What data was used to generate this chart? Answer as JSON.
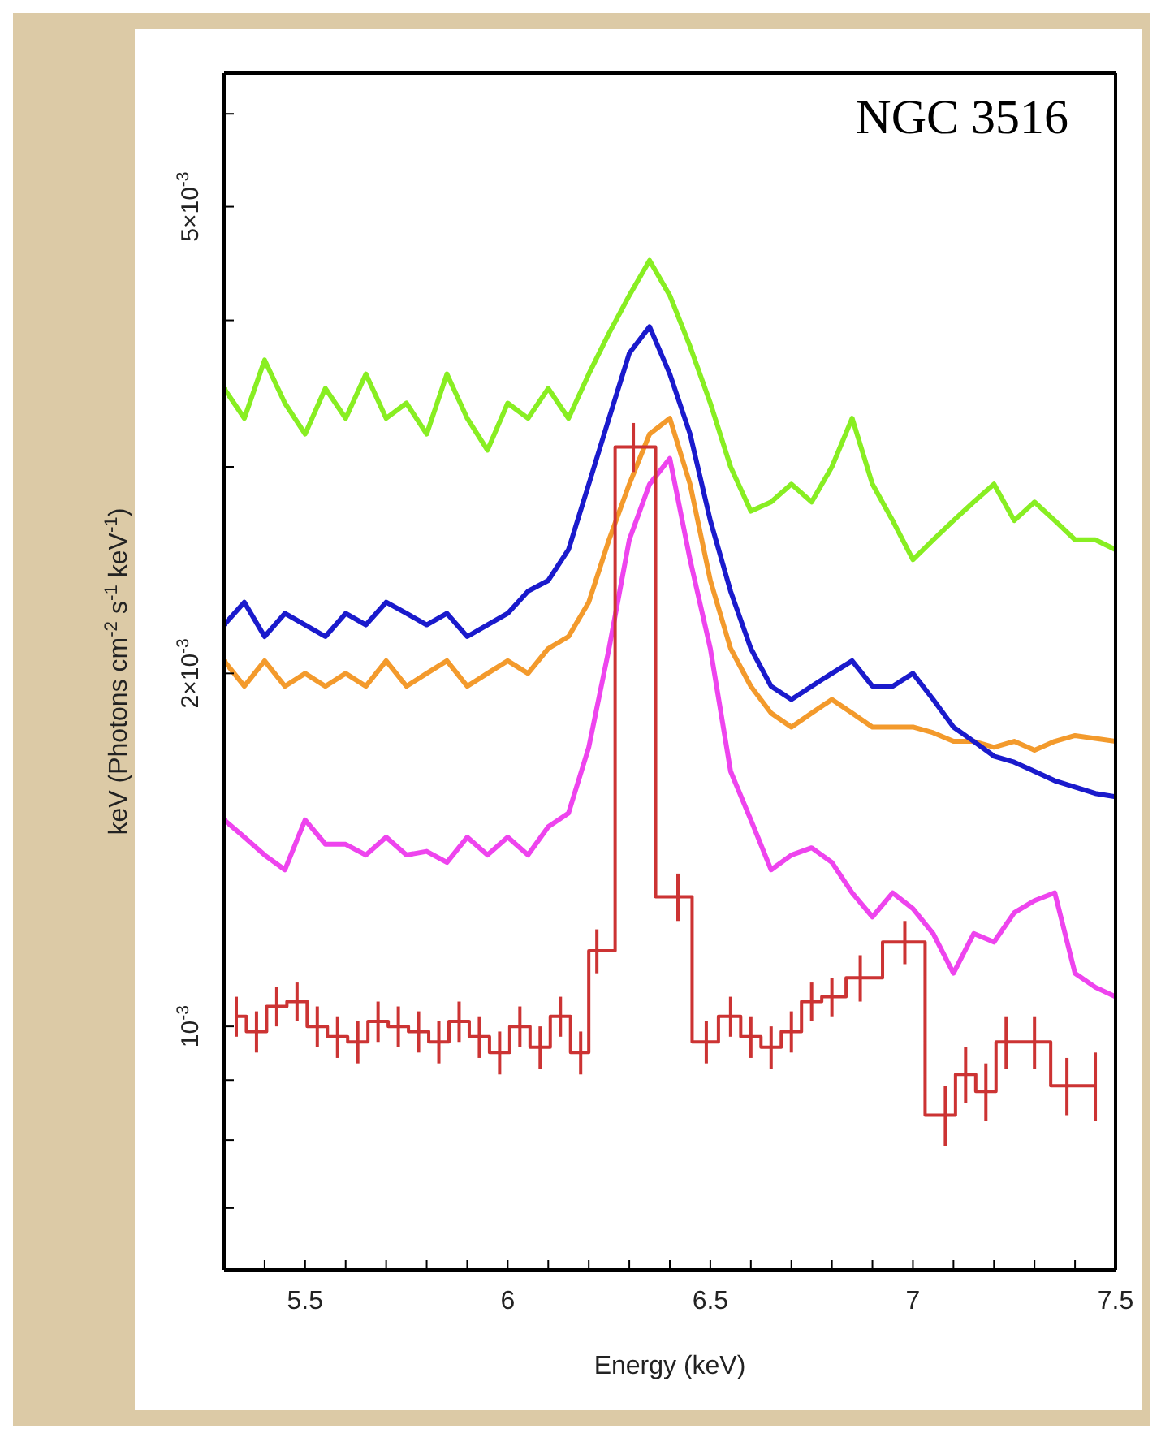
{
  "chart_data": {
    "type": "line",
    "xlabel": "Energy (keV)",
    "ylabel": "keV (Photons cm$^{-2}$ s$^{-1}$ keV$^{-1}$)",
    "annotations": [
      "NGC 3516"
    ],
    "log": "y",
    "xlim": [
      5.3,
      7.5
    ],
    "xticks": [
      {
        "value": 5.4,
        "label": null
      },
      5.5,
      {
        "value": 5.6,
        "label": null
      },
      {
        "value": 5.7,
        "label": null
      },
      {
        "value": 5.8,
        "label": null
      },
      {
        "value": 5.9,
        "label": null
      },
      6,
      {
        "value": 6.1,
        "label": null
      },
      {
        "value": 6.2,
        "label": null
      },
      {
        "value": 6.3,
        "label": null
      },
      {
        "value": 6.4,
        "label": null
      },
      6.5,
      {
        "value": 6.6,
        "label": null
      },
      {
        "value": 6.7,
        "label": null
      },
      {
        "value": 6.8,
        "label": null
      },
      {
        "value": 6.9,
        "label": null
      },
      7,
      {
        "value": 7.1,
        "label": null
      },
      {
        "value": 7.2,
        "label": null
      },
      {
        "value": 7.3,
        "label": null
      },
      {
        "value": 7.4,
        "label": null
      },
      7.5
    ],
    "ylim": [
      0.00062,
      0.0065
    ],
    "yticks": [
      {
        "value": 0.0007,
        "label": null
      },
      {
        "value": 0.0008,
        "label": null
      },
      {
        "value": 0.0009,
        "label": null
      },
      {
        "value": 0.001,
        "label": "10$^{-3}$"
      },
      {
        "value": 0.002,
        "label": "2×10$^{-3}$"
      },
      {
        "value": 0.003,
        "label": null
      },
      {
        "value": 0.004,
        "label": null
      },
      {
        "value": 0.005,
        "label": "5×10$^{-3}$"
      },
      {
        "value": 0.006,
        "label": null
      }
    ],
    "series": [
      {
        "color": "#88ee22",
        "x": [
          5.3,
          5.35,
          5.4,
          5.45,
          5.5,
          5.55,
          5.6,
          5.65,
          5.7,
          5.75,
          5.8,
          5.85,
          5.9,
          5.95,
          6.0,
          6.05,
          6.1,
          6.15,
          6.2,
          6.25,
          6.3,
          6.35,
          6.4,
          6.45,
          6.5,
          6.55,
          6.6,
          6.65,
          6.7,
          6.75,
          6.8,
          6.85,
          6.9,
          6.95,
          7.0,
          7.05,
          7.1,
          7.15,
          7.2,
          7.25,
          7.3,
          7.35,
          7.4,
          7.45,
          7.5
        ],
        "values": [
          0.0035,
          0.0033,
          0.0037,
          0.0034,
          0.0032,
          0.0035,
          0.0033,
          0.0036,
          0.0033,
          0.0034,
          0.0032,
          0.0036,
          0.0033,
          0.0031,
          0.0034,
          0.0033,
          0.0035,
          0.0033,
          0.0036,
          0.0039,
          0.0042,
          0.0045,
          0.0042,
          0.0038,
          0.0034,
          0.003,
          0.00275,
          0.0028,
          0.0029,
          0.0028,
          0.003,
          0.0033,
          0.0029,
          0.0027,
          0.0025,
          0.0026,
          0.0027,
          0.0028,
          0.0029,
          0.0027,
          0.0028,
          0.0027,
          0.0026,
          0.0026,
          0.00255
        ]
      },
      {
        "color": "#f39a2c",
        "x": [
          5.3,
          5.35,
          5.4,
          5.45,
          5.5,
          5.55,
          5.6,
          5.65,
          5.7,
          5.75,
          5.8,
          5.85,
          5.9,
          5.95,
          6.0,
          6.05,
          6.1,
          6.15,
          6.2,
          6.25,
          6.3,
          6.35,
          6.4,
          6.45,
          6.5,
          6.55,
          6.6,
          6.65,
          6.7,
          6.75,
          6.8,
          6.85,
          6.9,
          6.95,
          7.0,
          7.05,
          7.1,
          7.15,
          7.2,
          7.25,
          7.3,
          7.35,
          7.4,
          7.45,
          7.5
        ],
        "values": [
          0.00205,
          0.00195,
          0.00205,
          0.00195,
          0.002,
          0.00195,
          0.002,
          0.00195,
          0.00205,
          0.00195,
          0.002,
          0.00205,
          0.00195,
          0.002,
          0.00205,
          0.002,
          0.0021,
          0.00215,
          0.0023,
          0.0026,
          0.0029,
          0.0032,
          0.0033,
          0.0029,
          0.0024,
          0.0021,
          0.00195,
          0.00185,
          0.0018,
          0.00185,
          0.0019,
          0.00185,
          0.0018,
          0.0018,
          0.0018,
          0.00178,
          0.00175,
          0.00175,
          0.00173,
          0.00175,
          0.00172,
          0.00175,
          0.00177,
          0.00176,
          0.00175
        ]
      },
      {
        "color": "#1a1acc",
        "x": [
          5.3,
          5.35,
          5.4,
          5.45,
          5.5,
          5.55,
          5.6,
          5.65,
          5.7,
          5.75,
          5.8,
          5.85,
          5.9,
          5.95,
          6.0,
          6.05,
          6.1,
          6.15,
          6.2,
          6.25,
          6.3,
          6.35,
          6.4,
          6.45,
          6.5,
          6.55,
          6.6,
          6.65,
          6.7,
          6.75,
          6.8,
          6.85,
          6.9,
          6.95,
          7.0,
          7.05,
          7.1,
          7.15,
          7.2,
          7.25,
          7.3,
          7.35,
          7.4,
          7.45,
          7.5
        ],
        "values": [
          0.0022,
          0.0023,
          0.00215,
          0.00225,
          0.0022,
          0.00215,
          0.00225,
          0.0022,
          0.0023,
          0.00225,
          0.0022,
          0.00225,
          0.00215,
          0.0022,
          0.00225,
          0.00235,
          0.0024,
          0.00255,
          0.0029,
          0.0033,
          0.00375,
          0.00395,
          0.0036,
          0.0032,
          0.0027,
          0.00235,
          0.0021,
          0.00195,
          0.0019,
          0.00195,
          0.002,
          0.00205,
          0.00195,
          0.00195,
          0.002,
          0.0019,
          0.0018,
          0.00175,
          0.0017,
          0.00168,
          0.00165,
          0.00162,
          0.0016,
          0.00158,
          0.00157
        ]
      },
      {
        "color": "#ee44ee",
        "x": [
          5.3,
          5.35,
          5.4,
          5.45,
          5.5,
          5.55,
          5.6,
          5.65,
          5.7,
          5.75,
          5.8,
          5.85,
          5.9,
          5.95,
          6.0,
          6.05,
          6.1,
          6.15,
          6.2,
          6.25,
          6.3,
          6.35,
          6.4,
          6.45,
          6.5,
          6.55,
          6.6,
          6.65,
          6.7,
          6.75,
          6.8,
          6.85,
          6.9,
          6.95,
          7.0,
          7.05,
          7.1,
          7.15,
          7.2,
          7.25,
          7.3,
          7.35,
          7.4,
          7.45,
          7.5
        ],
        "values": [
          0.0015,
          0.00145,
          0.0014,
          0.00136,
          0.0015,
          0.00143,
          0.00143,
          0.0014,
          0.00145,
          0.0014,
          0.00141,
          0.00138,
          0.00145,
          0.0014,
          0.00145,
          0.0014,
          0.00148,
          0.00152,
          0.00173,
          0.0021,
          0.0026,
          0.0029,
          0.00305,
          0.0025,
          0.0021,
          0.00165,
          0.0015,
          0.00136,
          0.0014,
          0.00142,
          0.00138,
          0.0013,
          0.00124,
          0.0013,
          0.00126,
          0.0012,
          0.00111,
          0.0012,
          0.00118,
          0.00125,
          0.00128,
          0.0013,
          0.00111,
          0.00108,
          0.00106
        ]
      },
      {
        "color": "#cc3333",
        "type": "step",
        "x": [
          5.33,
          5.38,
          5.43,
          5.48,
          5.53,
          5.58,
          5.63,
          5.68,
          5.73,
          5.78,
          5.83,
          5.88,
          5.93,
          5.98,
          6.03,
          6.08,
          6.13,
          6.18,
          6.22,
          6.31,
          6.42,
          6.49,
          6.55,
          6.6,
          6.65,
          6.7,
          6.75,
          6.8,
          6.87,
          6.98,
          7.08,
          7.13,
          7.18,
          7.23,
          7.3,
          7.38,
          7.45
        ],
        "values": [
          0.00102,
          0.00099,
          0.00104,
          0.00105,
          0.001,
          0.00098,
          0.00097,
          0.00101,
          0.001,
          0.00099,
          0.00097,
          0.00101,
          0.00098,
          0.00095,
          0.001,
          0.00096,
          0.00102,
          0.00095,
          0.00116,
          0.00312,
          0.00129,
          0.00097,
          0.00102,
          0.00098,
          0.00096,
          0.00099,
          0.00105,
          0.00106,
          0.0011,
          0.00118,
          0.00084,
          0.00091,
          0.00088,
          0.00097,
          0.00097,
          0.00089,
          0.00089
        ],
        "errors": [
          4e-05,
          4e-05,
          4e-05,
          4e-05,
          4e-05,
          4e-05,
          4e-05,
          4e-05,
          4e-05,
          4e-05,
          4e-05,
          4e-05,
          4e-05,
          4e-05,
          4e-05,
          4e-05,
          4e-05,
          4e-05,
          5e-05,
          0.00015,
          6e-05,
          4e-05,
          4e-05,
          4e-05,
          4e-05,
          4e-05,
          4e-05,
          4e-05,
          5e-05,
          5e-05,
          5e-05,
          5e-05,
          5e-05,
          5e-05,
          5e-05,
          5e-05,
          6e-05
        ]
      }
    ]
  }
}
